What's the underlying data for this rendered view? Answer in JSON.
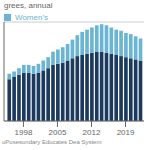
{
  "chart_data": {
    "type": "bar",
    "stacked": true,
    "ylabel": "grees, annual",
    "source": "uPosesondary Educates Dea System",
    "x": [
      1995,
      1996,
      1997,
      1998,
      1999,
      2000,
      2001,
      2002,
      2003,
      2004,
      2005,
      2006,
      2007,
      2008,
      2009,
      2010,
      2011,
      2012,
      2013,
      2014,
      2015,
      2016,
      2017,
      2018,
      2019,
      2020,
      2021,
      2022
    ],
    "series": [
      {
        "color": "#1b3a5e",
        "values": [
          38,
          40,
          42,
          44,
          44,
          43,
          44,
          46,
          48,
          51,
          52,
          53,
          55,
          57,
          59,
          60,
          61,
          62,
          63,
          63,
          62,
          61,
          60,
          59,
          58,
          57,
          56,
          55
        ]
      },
      {
        "name": "Women's",
        "color": "#6ab4d4",
        "values": [
          5,
          5,
          6,
          7,
          7,
          7,
          8,
          9,
          10,
          12,
          13,
          14,
          15,
          17,
          19,
          21,
          22,
          23,
          24,
          25,
          25,
          24,
          23,
          23,
          22,
          22,
          21,
          20
        ]
      }
    ],
    "xlim": [
      1994,
      2022.8
    ],
    "xticks": [
      1998,
      2005,
      2012,
      2019
    ],
    "ylim": [
      0,
      90
    ],
    "yticks": [
      20,
      40,
      60,
      80
    ],
    "grid": true,
    "legend": "upper left",
    "tick_labels": "x"
  }
}
